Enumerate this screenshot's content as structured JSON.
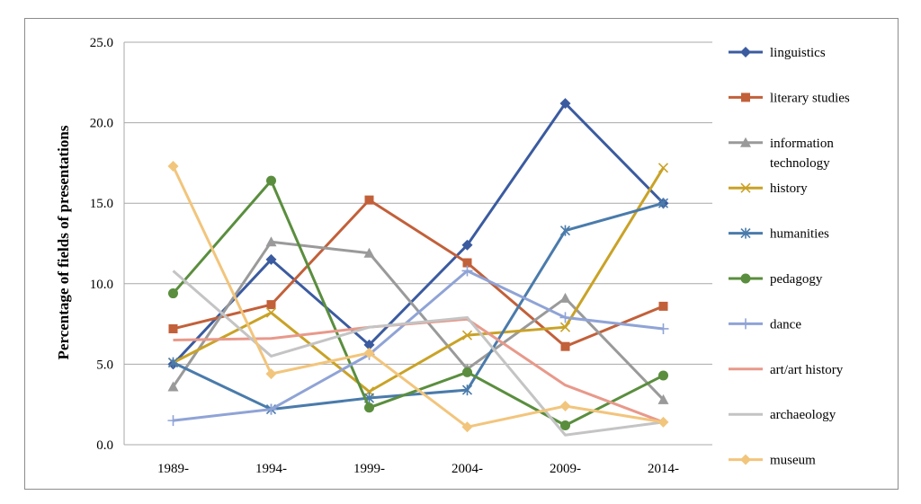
{
  "chart_data": {
    "type": "line",
    "title": "",
    "xlabel": "",
    "ylabel": "Percentage of fields of presentations",
    "ylim": [
      0,
      25
    ],
    "yticks": [
      "0.0",
      "5.0",
      "10.0",
      "15.0",
      "20.0",
      "25.0"
    ],
    "categories": [
      "1989-",
      "1994-",
      "1999-",
      "2004-",
      "2009-",
      "2014-"
    ],
    "grid": "horizontal",
    "legend_position": "right",
    "series": [
      {
        "name": "linguistics",
        "color": "#3b5ba0",
        "marker": "diamond",
        "values": [
          5.0,
          11.5,
          6.2,
          12.4,
          21.2,
          15.0
        ]
      },
      {
        "name": "literary studies",
        "color": "#c2603a",
        "marker": "square",
        "values": [
          7.2,
          8.7,
          15.2,
          11.3,
          6.1,
          8.6
        ]
      },
      {
        "name": "information technology",
        "color": "#9a9a9a",
        "marker": "triangle",
        "values": [
          3.6,
          12.6,
          11.9,
          4.7,
          9.1,
          2.8
        ]
      },
      {
        "name": "history",
        "color": "#c9a227",
        "marker": "x",
        "values": [
          5.1,
          8.2,
          3.3,
          6.8,
          7.3,
          17.2
        ]
      },
      {
        "name": "humanities",
        "color": "#4a7bab",
        "marker": "star",
        "values": [
          5.1,
          2.2,
          2.9,
          3.4,
          13.3,
          15.0
        ]
      },
      {
        "name": "pedagogy",
        "color": "#5a8e3e",
        "marker": "circle",
        "values": [
          9.4,
          16.4,
          2.3,
          4.5,
          1.2,
          4.3
        ]
      },
      {
        "name": "dance",
        "color": "#8fa3d6",
        "marker": "plus",
        "values": [
          1.5,
          2.2,
          5.6,
          10.8,
          7.9,
          7.2
        ]
      },
      {
        "name": "art/art history",
        "color": "#e8998a",
        "marker": "none",
        "values": [
          6.5,
          6.6,
          7.3,
          7.8,
          3.7,
          1.4
        ]
      },
      {
        "name": "archaeology",
        "color": "#c4c4c4",
        "marker": "none",
        "values": [
          10.8,
          5.5,
          7.3,
          7.9,
          0.6,
          1.4
        ]
      },
      {
        "name": "museum",
        "color": "#f2c57c",
        "marker": "diamond",
        "values": [
          17.3,
          4.4,
          5.7,
          1.1,
          2.4,
          1.4
        ]
      }
    ]
  }
}
